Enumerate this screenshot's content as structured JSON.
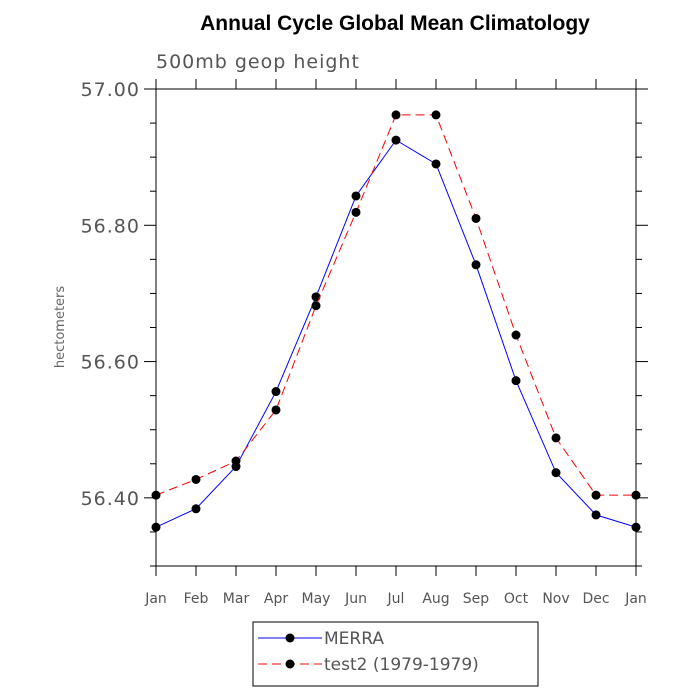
{
  "chart_data": {
    "type": "line",
    "title": "Annual Cycle Global Mean Climatology",
    "subtitle": "500mb geop height",
    "xlabel": "",
    "ylabel": "hectometers",
    "categories": [
      "Jan",
      "Feb",
      "Mar",
      "Apr",
      "May",
      "Jun",
      "Jul",
      "Aug",
      "Sep",
      "Oct",
      "Nov",
      "Dec",
      "Jan"
    ],
    "y_ticks": [
      "56.40",
      "56.60",
      "56.80",
      "57.00"
    ],
    "ylim": [
      56.3,
      57.0
    ],
    "y_major_step": 0.2,
    "y_minor_step": 0.05,
    "legend_position": "bottom",
    "grid": false,
    "series": [
      {
        "name": "MERRA",
        "color": "#0000ff",
        "dash": "solid",
        "values": [
          56.357,
          56.384,
          56.446,
          56.556,
          56.695,
          56.843,
          56.925,
          56.89,
          56.742,
          56.572,
          56.437,
          56.375,
          56.357
        ]
      },
      {
        "name": "test2 (1979-1979)",
        "color": "#ff0000",
        "dash": "dashed",
        "values": [
          56.404,
          56.427,
          56.454,
          56.529,
          56.682,
          56.819,
          56.962,
          56.962,
          56.81,
          56.639,
          56.488,
          56.404,
          56.404
        ]
      }
    ]
  }
}
